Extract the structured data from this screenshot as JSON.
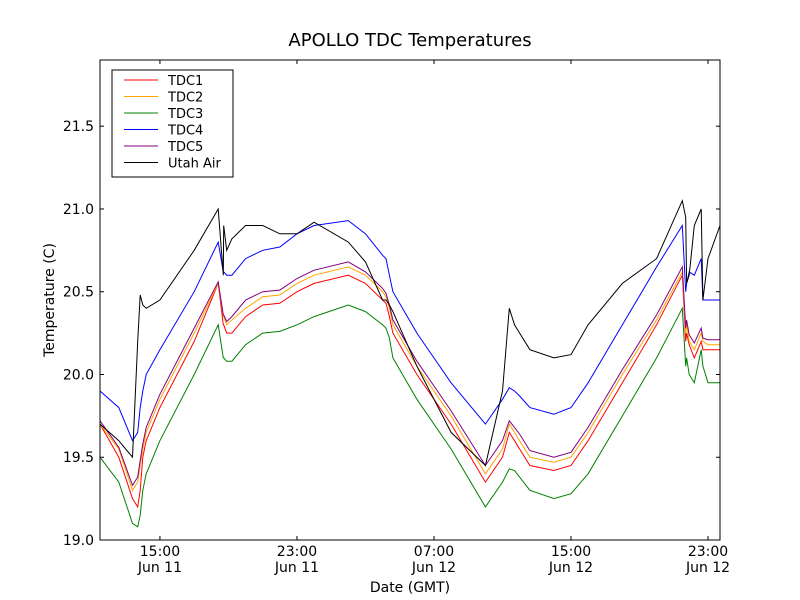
{
  "chart_data": {
    "type": "line",
    "title": "APOLLO TDC Temperatures",
    "xlabel": "Date (GMT)",
    "ylabel": "Temperature (C)",
    "xunit": "hours since Jun 11 00:00 GMT",
    "xlim": [
      11.5,
      47.7
    ],
    "ylim": [
      19.0,
      21.9
    ],
    "grid": false,
    "legend_position": "top-left",
    "x_ticks": [
      {
        "value": 15,
        "line1": "15:00",
        "line2": "Jun 11"
      },
      {
        "value": 23,
        "line1": "23:00",
        "line2": "Jun 11"
      },
      {
        "value": 31,
        "line1": "07:00",
        "line2": "Jun 12"
      },
      {
        "value": 39,
        "line1": "15:00",
        "line2": "Jun 12"
      },
      {
        "value": 47,
        "line1": "23:00",
        "line2": "Jun 12"
      }
    ],
    "y_ticks": [
      19.0,
      19.5,
      20.0,
      20.5,
      21.0,
      21.5
    ],
    "y_tick_labels": [
      "19.0",
      "19.5",
      "20.0",
      "20.5",
      "21.0",
      "21.5"
    ],
    "x": [
      11.5,
      12.6,
      13.4,
      13.7,
      13.85,
      14.0,
      14.2,
      15.0,
      17.0,
      18.4,
      18.7,
      18.72,
      18.9,
      19.2,
      20.0,
      21.0,
      22.0,
      23.0,
      24.0,
      26.0,
      27.0,
      28.0,
      28.2,
      28.4,
      28.6,
      30.0,
      32.0,
      34.0,
      35.0,
      35.4,
      35.7,
      36.0,
      36.6,
      38.0,
      39.0,
      40.0,
      42.0,
      44.0,
      45.5,
      45.7,
      45.75,
      45.9,
      46.2,
      46.6,
      46.7,
      47.0,
      47.7
    ],
    "series": [
      {
        "name": "TDC1",
        "color": "#ff0000",
        "values": [
          19.7,
          19.5,
          19.25,
          19.2,
          19.3,
          19.5,
          19.6,
          19.8,
          20.2,
          20.55,
          20.3,
          20.3,
          20.25,
          20.25,
          20.35,
          20.42,
          20.43,
          20.5,
          20.55,
          20.6,
          20.55,
          20.45,
          20.43,
          20.35,
          20.25,
          20.0,
          19.7,
          19.35,
          19.5,
          19.65,
          19.6,
          19.55,
          19.45,
          19.42,
          19.45,
          19.6,
          19.95,
          20.3,
          20.6,
          20.2,
          20.25,
          20.18,
          20.1,
          20.2,
          20.15,
          20.15,
          20.15
        ]
      },
      {
        "name": "TDC2",
        "color": "#ffa500",
        "values": [
          19.7,
          19.55,
          19.3,
          19.35,
          19.45,
          19.55,
          19.65,
          19.85,
          20.25,
          20.55,
          20.35,
          20.35,
          20.3,
          20.33,
          20.4,
          20.47,
          20.48,
          20.55,
          20.6,
          20.65,
          20.6,
          20.5,
          20.47,
          20.4,
          20.3,
          20.05,
          19.75,
          19.4,
          19.55,
          19.7,
          19.65,
          19.6,
          19.5,
          19.47,
          19.5,
          19.65,
          20.0,
          20.33,
          20.62,
          20.25,
          20.3,
          20.2,
          20.15,
          20.25,
          20.2,
          20.18,
          20.18
        ]
      },
      {
        "name": "TDC3",
        "color": "#008000",
        "values": [
          19.5,
          19.35,
          19.1,
          19.08,
          19.15,
          19.3,
          19.4,
          19.6,
          20.0,
          20.3,
          20.1,
          20.1,
          20.08,
          20.08,
          20.18,
          20.25,
          20.26,
          20.3,
          20.35,
          20.42,
          20.38,
          20.3,
          20.28,
          20.22,
          20.1,
          19.85,
          19.55,
          19.2,
          19.35,
          19.43,
          19.42,
          19.38,
          19.3,
          19.25,
          19.28,
          19.4,
          19.75,
          20.1,
          20.4,
          20.05,
          20.1,
          20.0,
          19.95,
          20.15,
          20.05,
          19.95,
          19.95
        ]
      },
      {
        "name": "TDC4",
        "color": "#0000ff",
        "values": [
          19.9,
          19.8,
          19.6,
          19.65,
          19.8,
          19.9,
          20.0,
          20.15,
          20.5,
          20.8,
          20.62,
          20.62,
          20.6,
          20.6,
          20.7,
          20.75,
          20.77,
          20.85,
          20.9,
          20.93,
          20.85,
          20.72,
          20.7,
          20.6,
          20.5,
          20.25,
          19.95,
          19.7,
          19.85,
          19.92,
          19.9,
          19.87,
          19.8,
          19.76,
          19.8,
          19.95,
          20.3,
          20.65,
          20.9,
          20.5,
          20.55,
          20.62,
          20.6,
          20.7,
          20.45,
          20.45,
          20.45
        ]
      },
      {
        "name": "TDC5",
        "color": "#800080",
        "values": [
          19.72,
          19.56,
          19.33,
          19.38,
          19.48,
          19.58,
          19.68,
          19.88,
          20.28,
          20.56,
          20.36,
          20.36,
          20.32,
          20.35,
          20.45,
          20.5,
          20.51,
          20.58,
          20.63,
          20.68,
          20.62,
          20.52,
          20.49,
          20.42,
          20.33,
          20.08,
          19.78,
          19.45,
          19.6,
          19.72,
          19.68,
          19.64,
          19.54,
          19.5,
          19.53,
          19.68,
          20.03,
          20.36,
          20.65,
          20.28,
          20.33,
          20.24,
          20.19,
          20.28,
          20.22,
          20.21,
          20.21
        ]
      },
      {
        "name": "Utah Air",
        "color": "#000000",
        "values": [
          19.7,
          19.6,
          19.5,
          20.2,
          20.48,
          20.42,
          20.4,
          20.45,
          20.75,
          21.0,
          20.6,
          20.9,
          20.75,
          20.82,
          20.9,
          20.9,
          20.85,
          20.85,
          20.92,
          20.8,
          20.68,
          20.45,
          20.45,
          20.42,
          20.38,
          20.05,
          19.65,
          19.45,
          19.9,
          20.4,
          20.3,
          20.25,
          20.15,
          20.1,
          20.12,
          20.3,
          20.55,
          20.7,
          21.05,
          20.95,
          20.55,
          20.6,
          20.9,
          21.0,
          20.45,
          20.7,
          20.9
        ]
      }
    ]
  }
}
